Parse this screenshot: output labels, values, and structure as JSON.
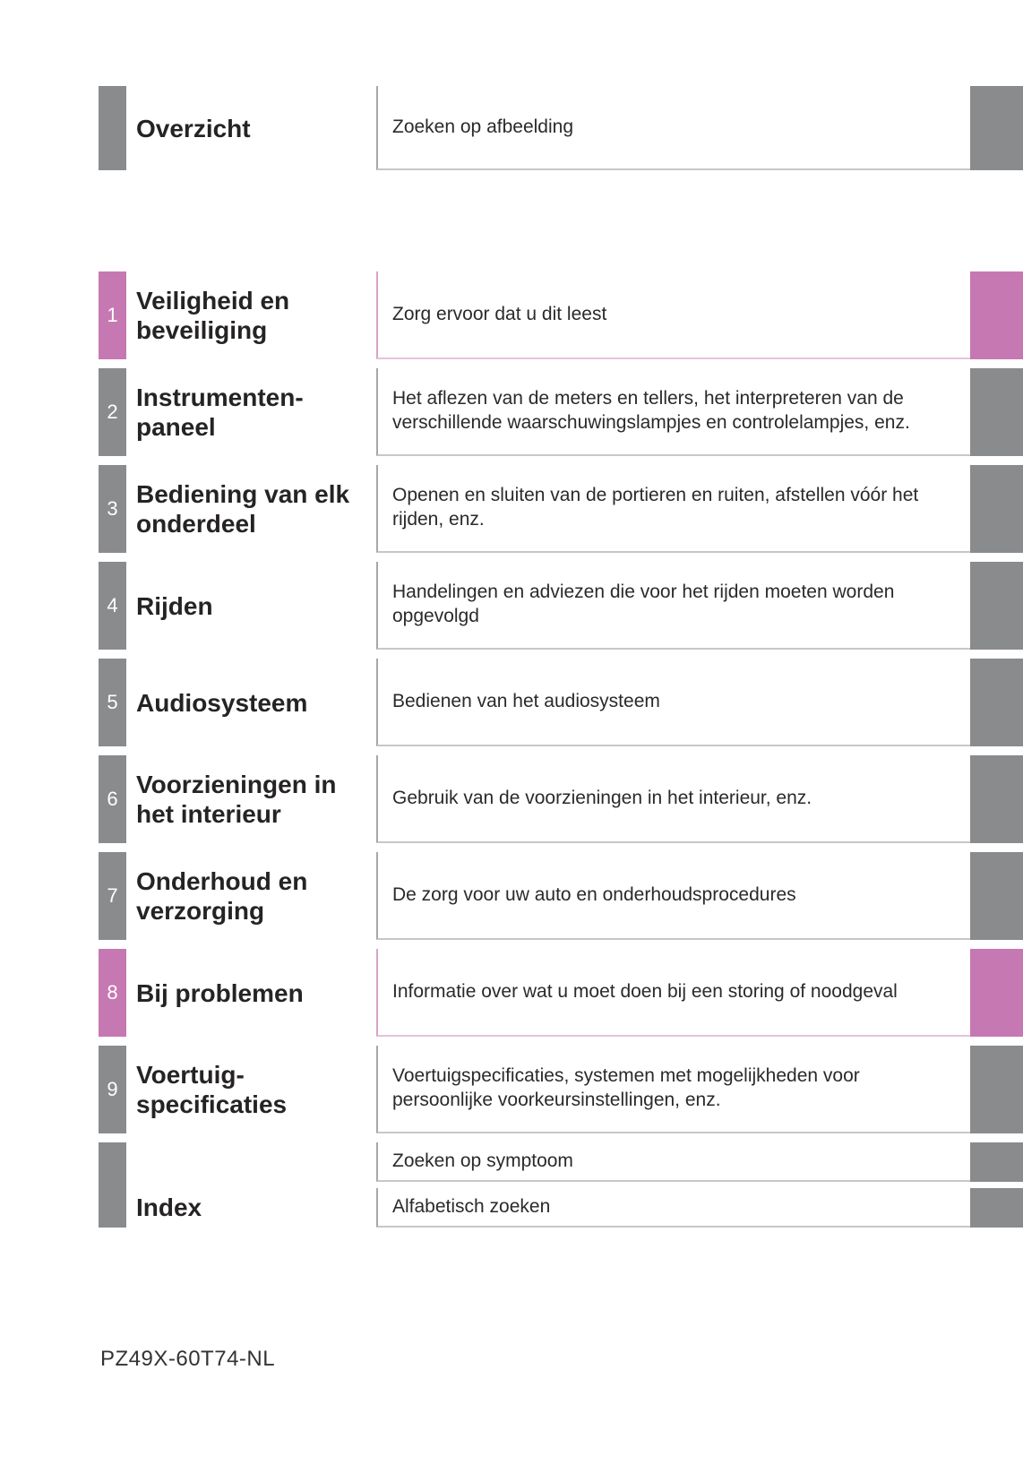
{
  "colors": {
    "tab_gray": "#8a8b8d",
    "tab_pink": "#c678b2",
    "border_gray": "#a6a7a9",
    "border_pink": "#d9a3c8"
  },
  "overview": {
    "title": "Overzicht",
    "description": "Zoeken op afbeelding"
  },
  "sections": [
    {
      "number": "1",
      "accent": "pink",
      "title": "Veiligheid en\nbeveiliging",
      "description": "Zorg ervoor dat u dit leest"
    },
    {
      "number": "2",
      "accent": "gray",
      "title": "Instrumenten-\npaneel",
      "description": "Het aflezen van de meters en tellers, het interpreteren van de verschillende waarschuwingslampjes en controlelampjes, enz."
    },
    {
      "number": "3",
      "accent": "gray",
      "title": "Bediening van elk\nonderdeel",
      "description": "Openen en sluiten van de portieren en ruiten, afstellen vóór het rijden, enz."
    },
    {
      "number": "4",
      "accent": "gray",
      "title": "Rijden",
      "description": "Handelingen en adviezen die voor het rijden moeten worden opgevolgd"
    },
    {
      "number": "5",
      "accent": "gray",
      "title": "Audiosysteem",
      "description": "Bedienen van het audiosysteem"
    },
    {
      "number": "6",
      "accent": "gray",
      "title": "Voorzieningen in\nhet interieur",
      "description": "Gebruik van de voorzieningen in het interieur, enz."
    },
    {
      "number": "7",
      "accent": "gray",
      "title": "Onderhoud en\nverzorging",
      "description": "De zorg voor uw auto en onderhoudsprocedures"
    },
    {
      "number": "8",
      "accent": "pink",
      "title": "Bij problemen",
      "description": "Informatie over wat u moet doen bij een storing of noodgeval"
    },
    {
      "number": "9",
      "accent": "gray",
      "title": "Voertuig-\nspecificaties",
      "description": "Voertuigspecificaties, systemen met mogelijkheden voor persoonlijke voorkeursinstellingen, enz."
    }
  ],
  "index": {
    "title": "Index",
    "items": [
      "Zoeken op symptoom",
      "Alfabetisch zoeken"
    ]
  },
  "footer": {
    "code": "PZ49X-60T74-NL"
  }
}
